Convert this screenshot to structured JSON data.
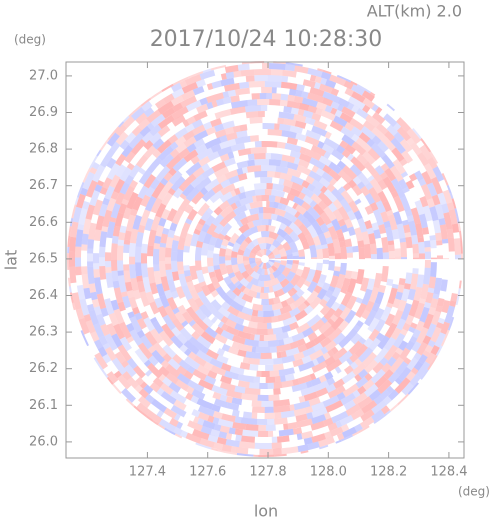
{
  "chart_data": {
    "type": "radar-field",
    "title": "2017/10/24 10:28:30",
    "annotation": "ALT(km) 2.0",
    "x_label": "lon",
    "y_label": "lat",
    "x_unit": "(deg)",
    "y_unit": "(deg)",
    "xlim": [
      127.13,
      128.45
    ],
    "ylim": [
      25.956,
      27.038
    ],
    "xticks": [
      127.4,
      127.6,
      127.8,
      {
        "value": 128,
        "label": "128.0"
      },
      128.2,
      128.4
    ],
    "yticks": [
      {
        "value": 26,
        "label": "26.0"
      },
      26.1,
      26.2,
      26.3,
      26.4,
      26.5,
      26.6,
      26.7,
      26.8,
      26.9,
      {
        "value": 27,
        "label": "27.0"
      }
    ]
  }
}
